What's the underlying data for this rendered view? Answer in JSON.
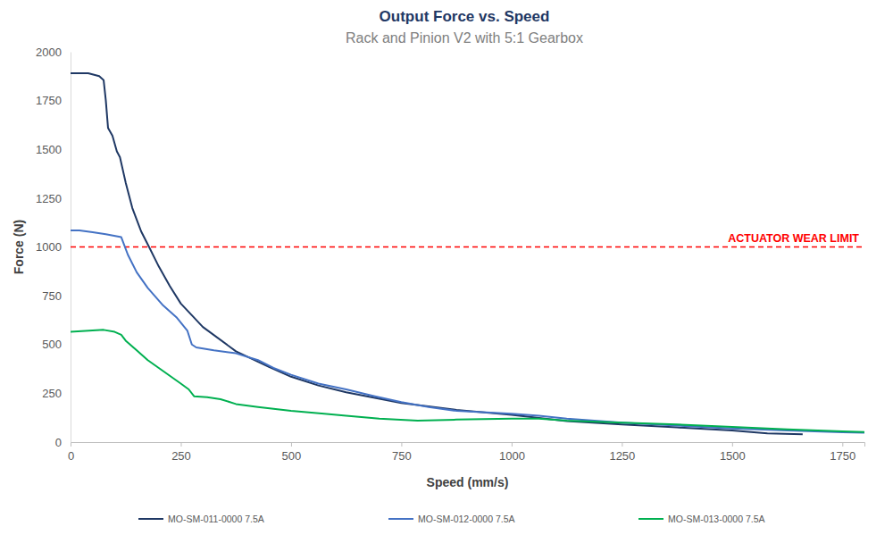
{
  "chart_data": {
    "type": "line",
    "title": "Output Force vs. Speed",
    "subtitle": "Rack and Pinion V2 with 5:1 Gearbox",
    "x_label": "Speed (mm/s)",
    "y_label": "Force (N)",
    "xlim": [
      0,
      1800
    ],
    "xticks": [
      0,
      250,
      500,
      750,
      1000,
      1250,
      1500,
      1750
    ],
    "ylim": [
      0,
      2000
    ],
    "yticks": [
      0,
      250,
      500,
      750,
      1000,
      1250,
      1500,
      1750,
      2000
    ],
    "grid": false,
    "legend": "bottom",
    "annotations": [
      {
        "text": "ACTUATOR WEAR LIMIT",
        "y": 1000,
        "color": "#ff0000",
        "line_style": "dashed"
      }
    ],
    "series": [
      {
        "name": "MO-SM-011-0000 7.5A",
        "color": "#1f3864",
        "x": [
          0,
          40,
          65,
          75,
          80,
          85,
          95,
          105,
          112,
          125,
          140,
          160,
          178,
          200,
          225,
          250,
          300,
          375,
          450,
          500,
          562,
          625,
          750,
          875,
          1000,
          1125,
          1250,
          1375,
          1500,
          1580,
          1660
        ],
        "values": [
          1890,
          1890,
          1875,
          1855,
          1750,
          1610,
          1570,
          1490,
          1460,
          1330,
          1200,
          1080,
          1000,
          900,
          800,
          710,
          590,
          465,
          385,
          335,
          290,
          255,
          200,
          165,
          140,
          108,
          90,
          75,
          60,
          45,
          40
        ]
      },
      {
        "name": "MO-SM-012-0000 7.5A",
        "color": "#4472c4",
        "x": [
          0,
          20,
          50,
          80,
          115,
          130,
          150,
          175,
          210,
          240,
          265,
          275,
          285,
          325,
          375,
          425,
          460,
          500,
          562,
          625,
          690,
          750,
          812,
          875,
          1000,
          1062,
          1125,
          1250,
          1375,
          1500,
          1625,
          1750,
          1800
        ],
        "values": [
          1085,
          1085,
          1075,
          1065,
          1050,
          960,
          870,
          790,
          700,
          640,
          570,
          500,
          485,
          470,
          455,
          420,
          380,
          345,
          300,
          270,
          235,
          205,
          180,
          160,
          145,
          135,
          120,
          100,
          85,
          70,
          60,
          50,
          48
        ]
      },
      {
        "name": "MO-SM-013-0000 7.5A",
        "color": "#00b050",
        "x": [
          0,
          50,
          75,
          100,
          115,
          125,
          150,
          175,
          200,
          225,
          250,
          268,
          280,
          310,
          340,
          375,
          425,
          500,
          575,
          625,
          700,
          787,
          875,
          1000,
          1062,
          1125,
          1250,
          1375,
          1500,
          1625,
          1750,
          1800
        ],
        "values": [
          565,
          572,
          575,
          565,
          550,
          520,
          470,
          420,
          380,
          340,
          300,
          270,
          235,
          230,
          220,
          195,
          180,
          160,
          145,
          135,
          120,
          110,
          115,
          120,
          120,
          110,
          100,
          90,
          78,
          65,
          55,
          52
        ]
      }
    ]
  }
}
